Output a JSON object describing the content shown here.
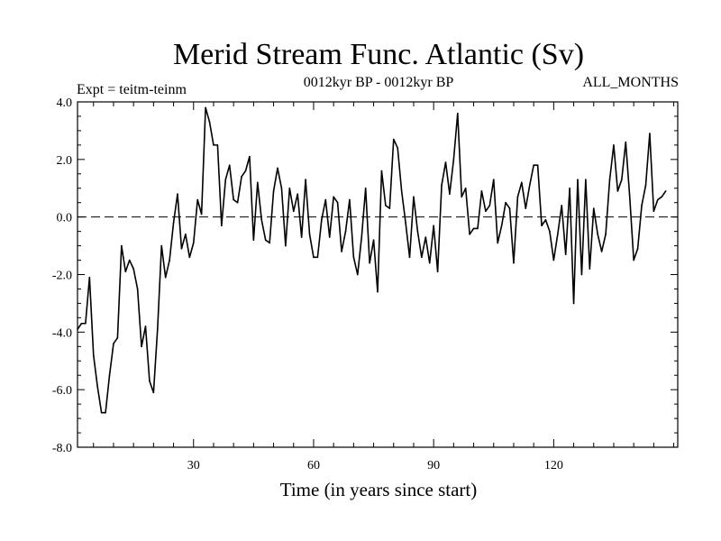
{
  "chart_data": {
    "type": "line",
    "title": "Merid Stream Func. Atlantic (Sv)",
    "subtitle_left": "Expt = teitm-teinm",
    "subtitle_center": "0012kyr BP - 0012kyr BP",
    "subtitle_right": "ALL_MONTHS",
    "xlabel": "Time (in years since start)",
    "ylabel": "",
    "xlim": [
      1,
      151
    ],
    "ylim": [
      -8,
      4
    ],
    "x_ticks": [
      30,
      60,
      90,
      120
    ],
    "y_ticks": [
      -8,
      -6,
      -4,
      -2,
      0,
      2,
      4
    ],
    "y_tick_labels": [
      "-8.0",
      "-6.0",
      "-4.0",
      "-2.0",
      "0.0",
      "2.0",
      "4.0"
    ],
    "reference_line": {
      "y": 0,
      "style": "dashed"
    },
    "grid": false,
    "series": [
      {
        "name": "Merid Stream Func. Atlantic",
        "x_start": 1,
        "x_step": 1,
        "values": [
          -3.9,
          -3.7,
          -3.7,
          -2.1,
          -4.8,
          -5.9,
          -6.8,
          -6.8,
          -5.5,
          -4.4,
          -4.2,
          -1.0,
          -1.9,
          -1.5,
          -1.8,
          -2.5,
          -4.5,
          -3.8,
          -5.7,
          -6.1,
          -3.9,
          -1.0,
          -2.1,
          -1.5,
          -0.2,
          0.8,
          -1.1,
          -0.6,
          -1.4,
          -0.9,
          0.6,
          0.1,
          3.8,
          3.3,
          2.5,
          2.5,
          -0.3,
          1.3,
          1.8,
          0.6,
          0.5,
          1.4,
          1.6,
          2.1,
          -0.8,
          1.2,
          -0.1,
          -0.8,
          -0.9,
          0.9,
          1.7,
          1.0,
          -1.0,
          1.0,
          0.2,
          0.8,
          -0.7,
          1.3,
          -0.6,
          -1.4,
          -1.4,
          -0.1,
          0.6,
          -0.7,
          0.7,
          0.5,
          -1.2,
          -0.5,
          0.6,
          -1.4,
          -2.0,
          -0.7,
          1.0,
          -1.6,
          -0.8,
          -2.6,
          1.6,
          0.4,
          0.3,
          2.7,
          2.4,
          0.9,
          -0.2,
          -1.4,
          0.7,
          -0.5,
          -1.4,
          -0.7,
          -1.6,
          -0.3,
          -1.9,
          1.1,
          1.9,
          0.8,
          2.0,
          3.6,
          0.7,
          1.0,
          -0.6,
          -0.4,
          -0.4,
          0.9,
          0.2,
          0.4,
          1.3,
          -0.9,
          -0.3,
          0.5,
          0.3,
          -1.6,
          0.7,
          1.2,
          0.3,
          1.1,
          1.8,
          1.8,
          -0.3,
          -0.1,
          -0.5,
          -1.5,
          -0.6,
          0.4,
          -1.3,
          1.0,
          -3.0,
          1.3,
          -2.0,
          1.3,
          -1.8,
          0.3,
          -0.6,
          -1.2,
          -0.6,
          1.3,
          2.5,
          0.9,
          1.3,
          2.6,
          0.7,
          -1.5,
          -1.1,
          0.4,
          1.1,
          2.9,
          0.2,
          0.6,
          0.7,
          0.9
        ]
      }
    ]
  }
}
